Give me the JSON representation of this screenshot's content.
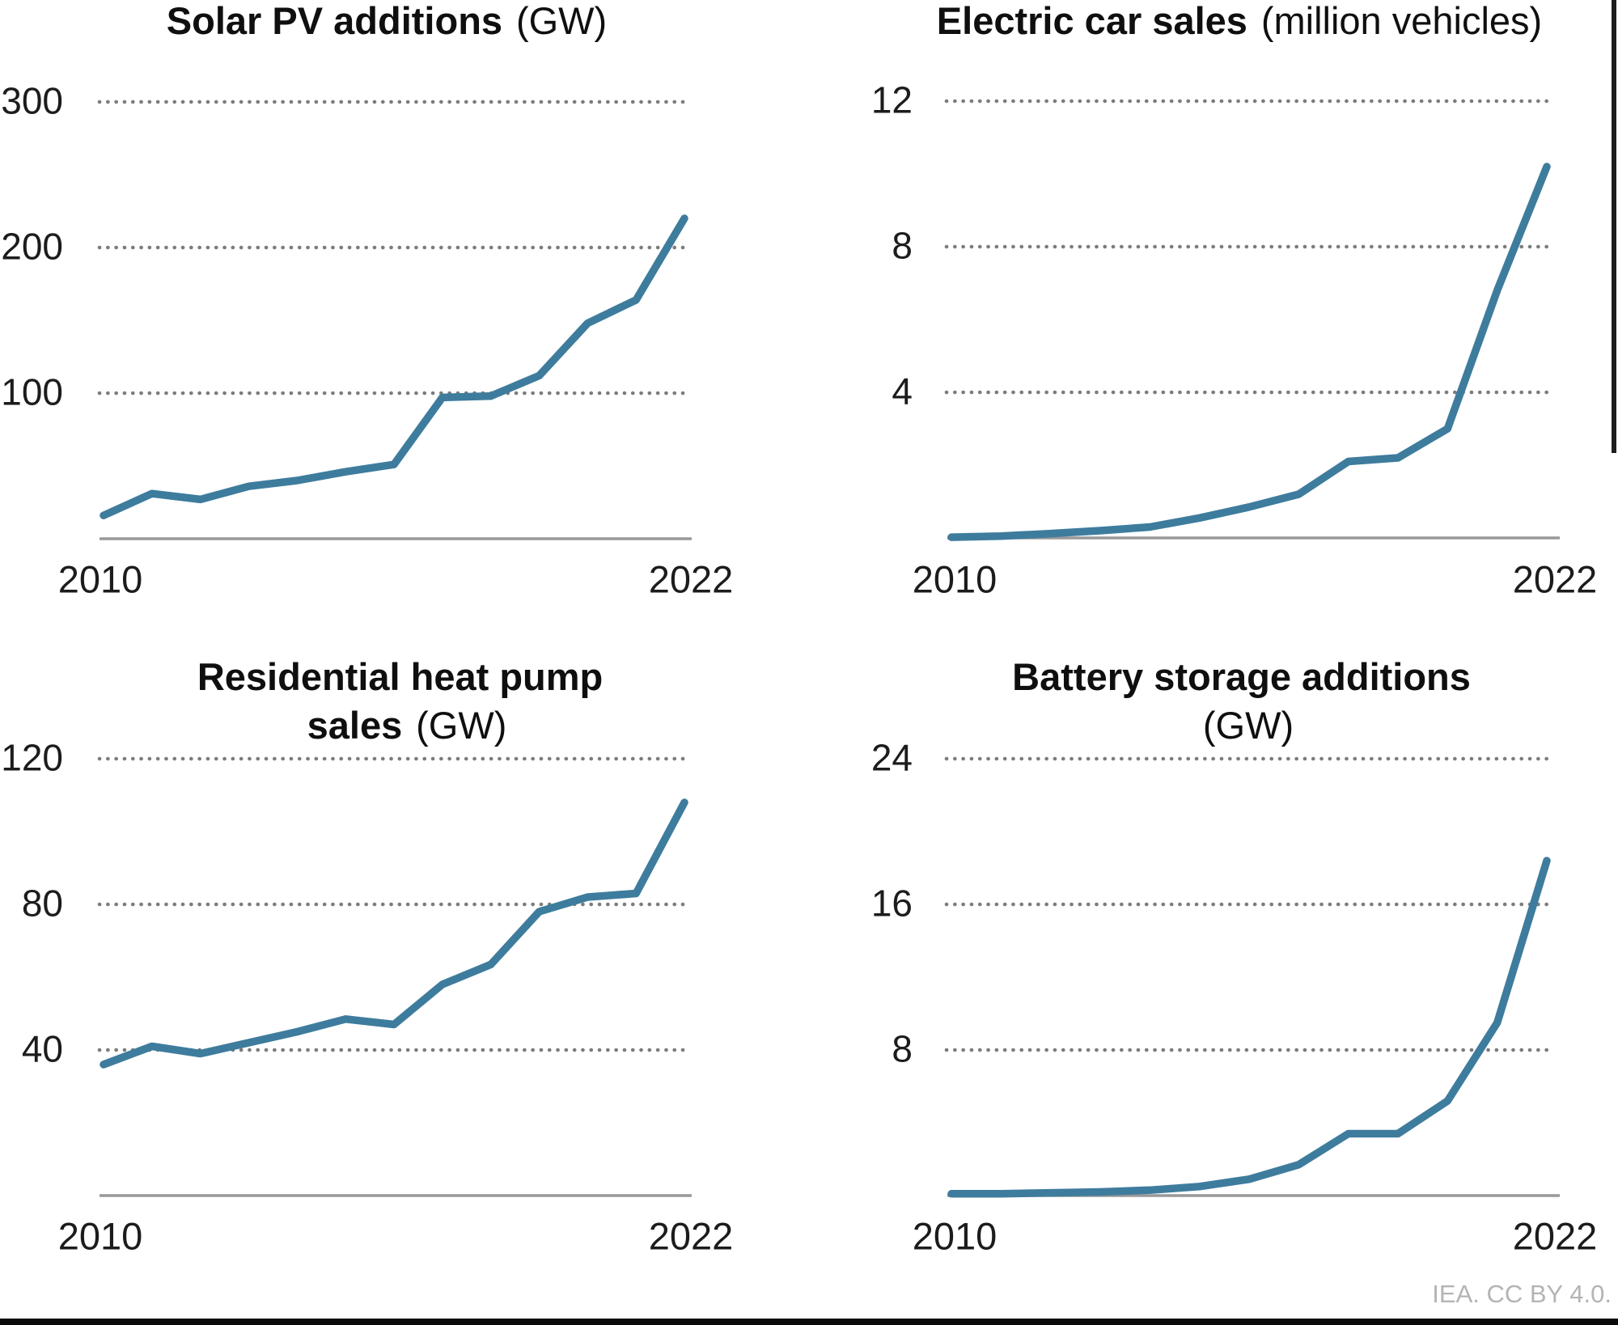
{
  "credit": "IEA. CC BY 4.0.",
  "style": {
    "line_color": "#3E7C9D",
    "gridline_color": "#7C7C7C",
    "axis_color": "#999999",
    "title_color": "#0F0F0F",
    "credit_color": "#B4B4B4"
  },
  "chart_data": [
    {
      "id": "solar-pv-additions",
      "type": "line",
      "title": "Solar PV additions (GW)",
      "title_lines": [
        {
          "bold": "Solar PV additions",
          "regular": "(GW)"
        }
      ],
      "unit": "GW",
      "x": [
        2010,
        2011,
        2012,
        2013,
        2014,
        2015,
        2016,
        2017,
        2018,
        2019,
        2020,
        2021,
        2022
      ],
      "values": [
        16,
        31,
        27,
        36,
        40,
        46,
        51,
        97,
        98,
        112,
        148,
        164,
        220
      ],
      "yticks": [
        300,
        200,
        100
      ],
      "xticks": [
        "2010",
        "2022"
      ],
      "ylim": [
        0,
        330
      ],
      "grid": "dotted-horizontal",
      "legend": "none",
      "line_color": "#3E7C9D"
    },
    {
      "id": "electric-car-sales",
      "type": "line",
      "title": "Electric car sales (million vehicles)",
      "title_lines": [
        {
          "bold": "Electric car sales",
          "regular": "(million vehicles)"
        }
      ],
      "unit": "million vehicles",
      "x": [
        2010,
        2011,
        2012,
        2013,
        2014,
        2015,
        2016,
        2017,
        2018,
        2019,
        2020,
        2021,
        2022
      ],
      "values": [
        0.02,
        0.05,
        0.12,
        0.2,
        0.3,
        0.55,
        0.85,
        1.2,
        2.1,
        2.2,
        3.0,
        6.8,
        10.2
      ],
      "yticks": [
        12,
        8,
        4
      ],
      "xticks": [
        "2010",
        "2022"
      ],
      "ylim": [
        0,
        13.2
      ],
      "grid": "dotted-horizontal",
      "legend": "none",
      "line_color": "#3E7C9D"
    },
    {
      "id": "residential-heat-pump-sales",
      "type": "line",
      "title": "Residential heat pump sales (GW)",
      "title_lines": [
        {
          "bold": "Residential heat pump",
          "regular": ""
        },
        {
          "bold": "sales",
          "regular": "(GW)"
        }
      ],
      "unit": "GW",
      "x": [
        2010,
        2011,
        2012,
        2013,
        2014,
        2015,
        2016,
        2017,
        2018,
        2019,
        2020,
        2021,
        2022
      ],
      "values": [
        36,
        41,
        39,
        42,
        45,
        48.5,
        47,
        58,
        63.5,
        78,
        82,
        83,
        108
      ],
      "yticks": [
        120,
        80,
        40
      ],
      "xticks": [
        "2010",
        "2022"
      ],
      "ylim": [
        0,
        132
      ],
      "grid": "dotted-horizontal",
      "legend": "none",
      "line_color": "#3E7C9D"
    },
    {
      "id": "battery-storage-additions",
      "type": "line",
      "title": "Battery storage additions (GW)",
      "title_lines": [
        {
          "bold": "Battery storage additions",
          "regular": ""
        },
        {
          "bold": "",
          "regular": "(GW)"
        }
      ],
      "unit": "GW",
      "x": [
        2010,
        2011,
        2012,
        2013,
        2014,
        2015,
        2016,
        2017,
        2018,
        2019,
        2020,
        2021,
        2022
      ],
      "values": [
        0.1,
        0.1,
        0.15,
        0.2,
        0.3,
        0.5,
        0.9,
        1.7,
        3.4,
        3.4,
        5.2,
        9.5,
        18.4
      ],
      "yticks": [
        24,
        16,
        8
      ],
      "xticks": [
        "2010",
        "2022"
      ],
      "ylim": [
        0,
        26.4
      ],
      "grid": "dotted-horizontal",
      "legend": "none",
      "line_color": "#3E7C9D"
    }
  ]
}
